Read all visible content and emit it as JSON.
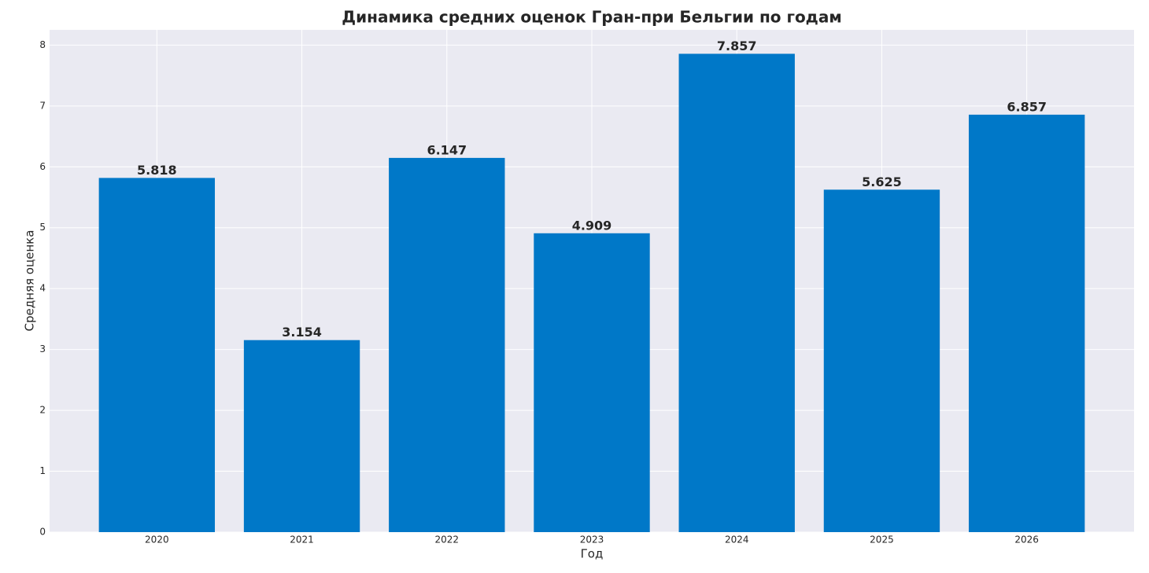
{
  "chart_data": {
    "type": "bar",
    "title": "Динамика средних оценок Гран-при Бельгии по годам",
    "x_label": "Год",
    "y_label": "Средняя оценка",
    "categories": [
      "2020",
      "2021",
      "2022",
      "2023",
      "2024",
      "2025",
      "2026"
    ],
    "values": [
      5.818,
      3.154,
      6.147,
      4.909,
      7.857,
      5.625,
      6.857
    ],
    "color": "#0078c8",
    "ylim": [
      0,
      8.25
    ],
    "yticks": [
      0,
      1,
      2,
      3,
      4,
      5,
      6,
      7,
      8
    ],
    "grid": true
  }
}
